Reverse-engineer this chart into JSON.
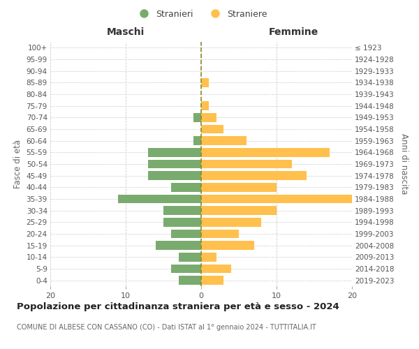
{
  "age_groups": [
    "0-4",
    "5-9",
    "10-14",
    "15-19",
    "20-24",
    "25-29",
    "30-34",
    "35-39",
    "40-44",
    "45-49",
    "50-54",
    "55-59",
    "60-64",
    "65-69",
    "70-74",
    "75-79",
    "80-84",
    "85-89",
    "90-94",
    "95-99",
    "100+"
  ],
  "birth_years": [
    "2019-2023",
    "2014-2018",
    "2009-2013",
    "2004-2008",
    "1999-2003",
    "1994-1998",
    "1989-1993",
    "1984-1988",
    "1979-1983",
    "1974-1978",
    "1969-1973",
    "1964-1968",
    "1959-1963",
    "1954-1958",
    "1949-1953",
    "1944-1948",
    "1939-1943",
    "1934-1938",
    "1929-1933",
    "1924-1928",
    "≤ 1923"
  ],
  "maschi": [
    3,
    4,
    3,
    6,
    4,
    5,
    5,
    11,
    4,
    7,
    7,
    7,
    1,
    0,
    1,
    0,
    0,
    0,
    0,
    0,
    0
  ],
  "femmine": [
    3,
    4,
    2,
    7,
    5,
    8,
    10,
    20,
    10,
    14,
    12,
    17,
    6,
    3,
    2,
    1,
    0,
    1,
    0,
    0,
    0
  ],
  "maschi_color": "#7aab6e",
  "femmine_color": "#ffc04d",
  "title": "Popolazione per cittadinanza straniera per età e sesso - 2024",
  "subtitle": "COMUNE DI ALBESE CON CASSANO (CO) - Dati ISTAT al 1° gennaio 2024 - TUTTITALIA.IT",
  "ylabel_left": "Fasce di età",
  "ylabel_right": "Anni di nascita",
  "xlabel_left": "Maschi",
  "xlabel_right": "Femmine",
  "legend_stranieri": "Stranieri",
  "legend_straniere": "Straniere",
  "xlim": 20,
  "background_color": "#ffffff",
  "grid_color": "#cccccc",
  "dashed_line_color": "#8b8b2a"
}
